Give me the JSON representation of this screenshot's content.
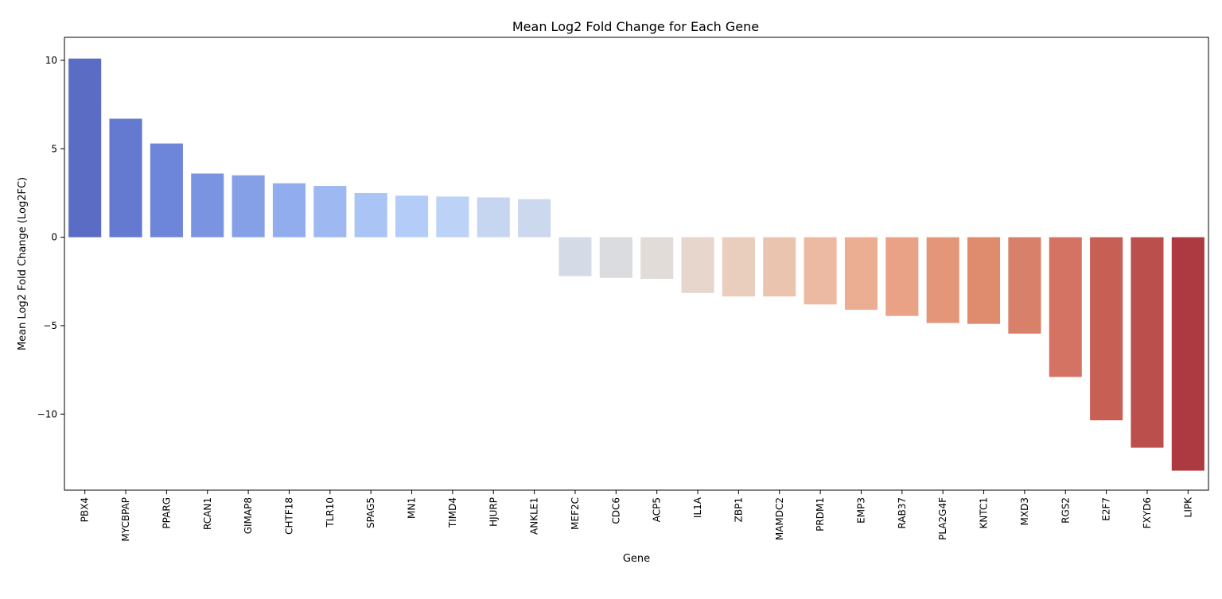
{
  "chart_data": {
    "type": "bar",
    "title": "Mean Log2 Fold Change for Each Gene",
    "xlabel": "Gene",
    "ylabel": "Mean Log2 Fold Change (Log2FC)",
    "ylim": [
      -14.3,
      11.3
    ],
    "yticks": [
      -10,
      -5,
      0,
      5,
      10
    ],
    "grid": false,
    "legend": "none",
    "categories": [
      "PBX4",
      "MYCBPAP",
      "PPARG",
      "RCAN1",
      "GIMAP8",
      "CHTF18",
      "TLR10",
      "SPAG5",
      "MN1",
      "TIMD4",
      "HJURP",
      "ANKLE1",
      "MEF2C",
      "CDC6",
      "ACP5",
      "IL1A",
      "ZBP1",
      "MAMDC2",
      "PRDM1",
      "EMP3",
      "RAB37",
      "PLA2G4F",
      "KNTC1",
      "MXD3",
      "RGS2",
      "E2F7",
      "FXYD6",
      "LIPK"
    ],
    "values": [
      10.1,
      6.7,
      5.3,
      3.6,
      3.5,
      3.05,
      2.9,
      2.5,
      2.35,
      2.3,
      2.25,
      2.15,
      -2.2,
      -2.3,
      -2.35,
      -3.15,
      -3.35,
      -3.35,
      -3.8,
      -4.1,
      -4.45,
      -4.85,
      -4.9,
      -5.45,
      -7.9,
      -10.35,
      -11.9,
      -13.2
    ],
    "colors": [
      "#5a6cc4",
      "#6479d0",
      "#6e86d9",
      "#7b94e2",
      "#86a0e8",
      "#92aded",
      "#9eb9f2",
      "#aac4f5",
      "#b4cdf8",
      "#bcd2f6",
      "#c6d6f1",
      "#ccd8ee",
      "#d4dbe6",
      "#dadce0",
      "#e1dcd8",
      "#e6d6cb",
      "#e9cdbd",
      "#ebc4b0",
      "#ecb9a2",
      "#ecae93",
      "#e9a286",
      "#e49679",
      "#df8b6d",
      "#d9806a",
      "#d47363",
      "#c85f55",
      "#bb4f4b",
      "#ac3a40"
    ]
  }
}
